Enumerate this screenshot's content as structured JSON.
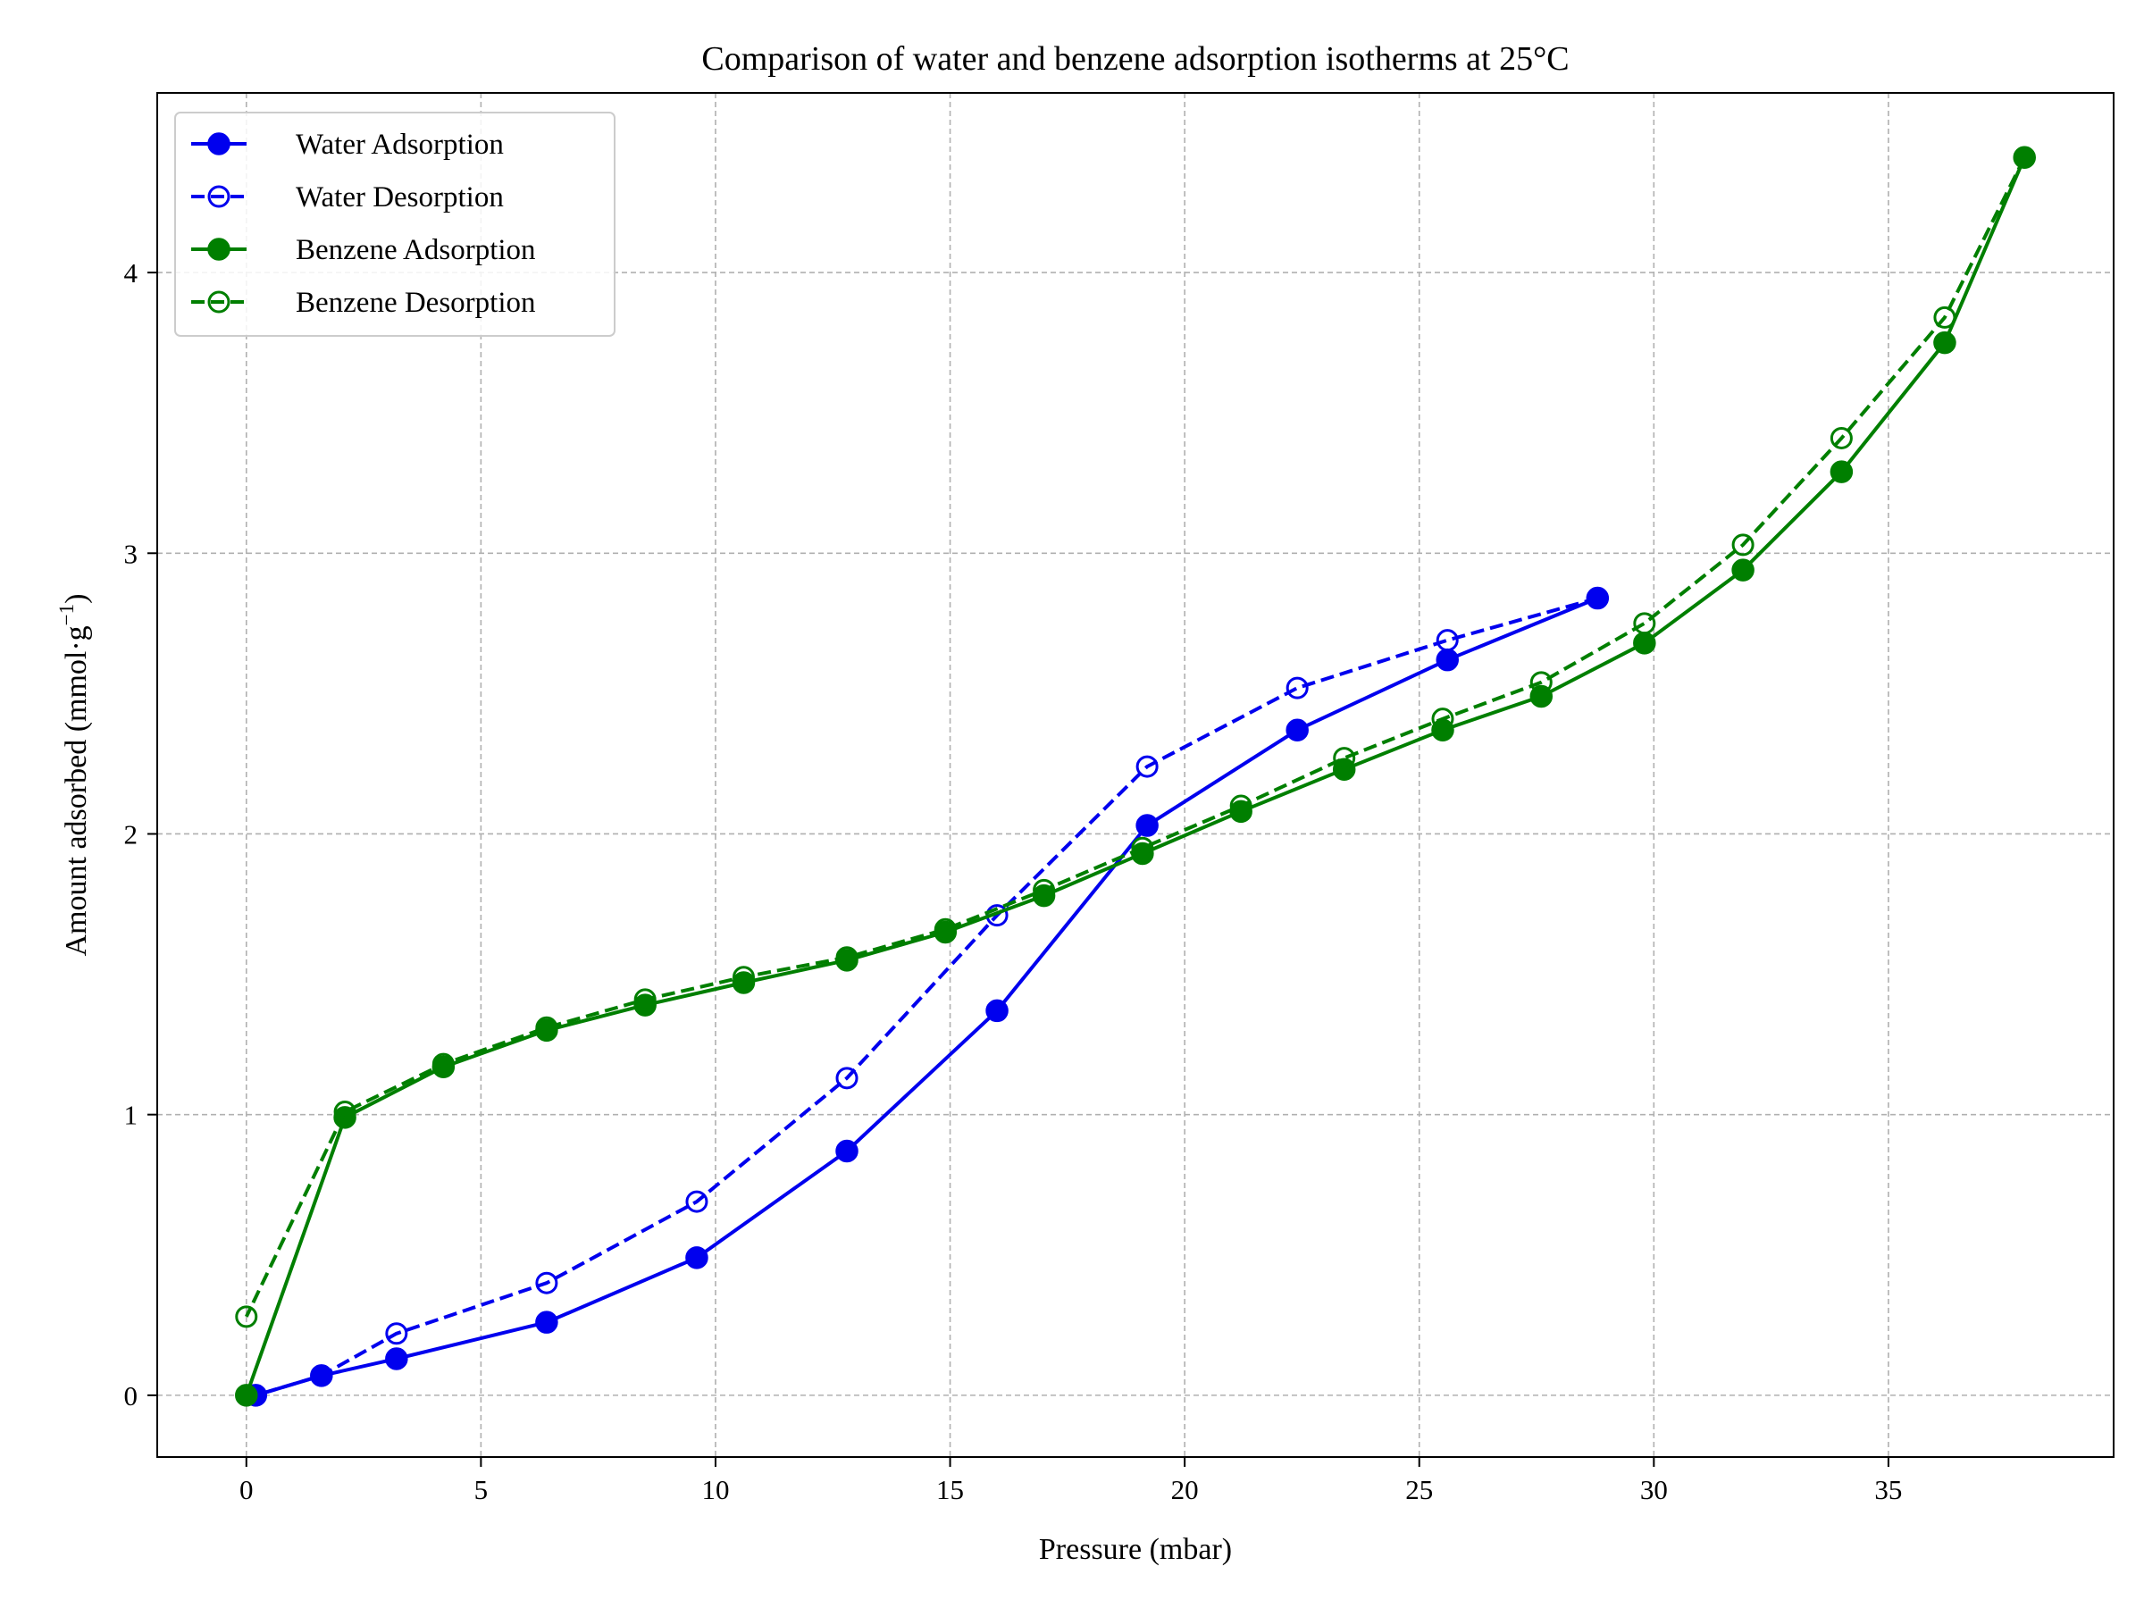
{
  "chart_data": {
    "type": "line",
    "title": "Comparison of water and benzene adsorption isotherms at 25°C",
    "xlabel": "Pressure (mbar)",
    "ylabel": "Amount adsorbed (mmol·g",
    "ylabel_sup": "−1",
    "ylabel_end": ")",
    "xlim": [
      -1.9,
      39.8
    ],
    "ylim": [
      -0.22,
      4.64
    ],
    "xticks": [
      0,
      5,
      10,
      15,
      20,
      25,
      30,
      35
    ],
    "yticks": [
      0,
      1,
      2,
      3,
      4
    ],
    "grid": true,
    "legend_position": "top-left",
    "series": [
      {
        "name": "Water Adsorption",
        "color": "#0000ee",
        "linestyle": "solid",
        "marker": "filled-circle",
        "x": [
          0.2,
          1.6,
          3.2,
          6.4,
          9.6,
          12.8,
          16.0,
          19.2,
          22.4,
          25.6,
          28.8
        ],
        "y": [
          0.0,
          0.07,
          0.13,
          0.26,
          0.49,
          0.87,
          1.37,
          2.03,
          2.37,
          2.62,
          2.84
        ]
      },
      {
        "name": "Water Desorption",
        "color": "#0000ee",
        "linestyle": "dashed",
        "marker": "open-circle",
        "x": [
          28.8,
          25.6,
          22.4,
          19.2,
          16.0,
          12.8,
          9.6,
          6.4,
          3.2,
          1.6,
          0.2
        ],
        "y": [
          2.84,
          2.69,
          2.52,
          2.24,
          1.71,
          1.13,
          0.69,
          0.4,
          0.22,
          0.07,
          0.0
        ]
      },
      {
        "name": "Benzene Adsorption",
        "color": "#007f00",
        "linestyle": "solid",
        "marker": "filled-circle",
        "x": [
          0.0,
          2.1,
          4.2,
          6.4,
          8.5,
          10.6,
          12.8,
          14.9,
          17.0,
          19.1,
          21.2,
          23.4,
          25.5,
          27.6,
          29.8,
          31.9,
          34.0,
          36.2,
          37.9
        ],
        "y": [
          0.0,
          0.99,
          1.17,
          1.3,
          1.39,
          1.47,
          1.55,
          1.65,
          1.78,
          1.93,
          2.08,
          2.23,
          2.37,
          2.49,
          2.68,
          2.94,
          3.29,
          3.75,
          4.41
        ]
      },
      {
        "name": "Benzene Desorption",
        "color": "#007f00",
        "linestyle": "dashed",
        "marker": "open-circle",
        "x": [
          37.9,
          36.2,
          34.0,
          31.9,
          29.8,
          27.6,
          25.5,
          23.4,
          21.2,
          19.1,
          17.0,
          14.9,
          12.8,
          10.6,
          8.5,
          6.4,
          4.2,
          2.1,
          0.0
        ],
        "y": [
          4.41,
          3.84,
          3.41,
          3.03,
          2.75,
          2.54,
          2.41,
          2.27,
          2.1,
          1.95,
          1.8,
          1.66,
          1.56,
          1.49,
          1.41,
          1.31,
          1.18,
          1.01,
          0.28
        ]
      }
    ]
  }
}
